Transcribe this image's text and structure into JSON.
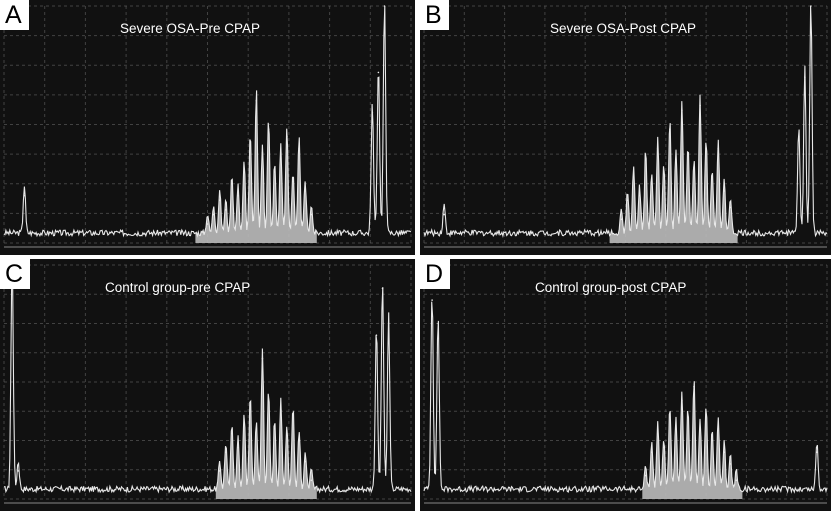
{
  "colors": {
    "background": "#111111",
    "grid": "#6a6a6a",
    "trace": "#e8e8e8",
    "fill": "#bdbdbd"
  },
  "chart_data": [
    {
      "panel": "A",
      "title": "Severe OSA-Pre CPAP",
      "type": "area",
      "grid": true,
      "peaks": [
        {
          "x": 0.05,
          "y": 0.2,
          "w": 0.004
        },
        {
          "x": 0.5,
          "y": 0.08,
          "w": 0.004
        },
        {
          "x": 0.515,
          "y": 0.12,
          "w": 0.004
        },
        {
          "x": 0.53,
          "y": 0.18,
          "w": 0.004
        },
        {
          "x": 0.545,
          "y": 0.14,
          "w": 0.004
        },
        {
          "x": 0.56,
          "y": 0.25,
          "w": 0.004
        },
        {
          "x": 0.575,
          "y": 0.2,
          "w": 0.004
        },
        {
          "x": 0.59,
          "y": 0.3,
          "w": 0.004
        },
        {
          "x": 0.605,
          "y": 0.42,
          "w": 0.004
        },
        {
          "x": 0.62,
          "y": 0.6,
          "w": 0.004
        },
        {
          "x": 0.635,
          "y": 0.38,
          "w": 0.004
        },
        {
          "x": 0.65,
          "y": 0.48,
          "w": 0.004
        },
        {
          "x": 0.665,
          "y": 0.3,
          "w": 0.004
        },
        {
          "x": 0.68,
          "y": 0.38,
          "w": 0.004
        },
        {
          "x": 0.695,
          "y": 0.45,
          "w": 0.004
        },
        {
          "x": 0.71,
          "y": 0.26,
          "w": 0.004
        },
        {
          "x": 0.725,
          "y": 0.4,
          "w": 0.004
        },
        {
          "x": 0.74,
          "y": 0.22,
          "w": 0.004
        },
        {
          "x": 0.755,
          "y": 0.12,
          "w": 0.004
        },
        {
          "x": 0.905,
          "y": 0.55,
          "w": 0.004
        },
        {
          "x": 0.92,
          "y": 0.72,
          "w": 0.004
        },
        {
          "x": 0.935,
          "y": 1.0,
          "w": 0.004
        }
      ],
      "fill_range": [
        0.47,
        0.77
      ]
    },
    {
      "panel": "B",
      "title": "Severe OSA-Post CPAP",
      "type": "area",
      "grid": true,
      "peaks": [
        {
          "x": 0.05,
          "y": 0.12,
          "w": 0.004
        },
        {
          "x": 0.49,
          "y": 0.1,
          "w": 0.004
        },
        {
          "x": 0.505,
          "y": 0.18,
          "w": 0.004
        },
        {
          "x": 0.52,
          "y": 0.28,
          "w": 0.004
        },
        {
          "x": 0.535,
          "y": 0.2,
          "w": 0.004
        },
        {
          "x": 0.55,
          "y": 0.35,
          "w": 0.004
        },
        {
          "x": 0.565,
          "y": 0.25,
          "w": 0.004
        },
        {
          "x": 0.58,
          "y": 0.4,
          "w": 0.004
        },
        {
          "x": 0.595,
          "y": 0.3,
          "w": 0.004
        },
        {
          "x": 0.61,
          "y": 0.48,
          "w": 0.004
        },
        {
          "x": 0.625,
          "y": 0.35,
          "w": 0.004
        },
        {
          "x": 0.64,
          "y": 0.56,
          "w": 0.004
        },
        {
          "x": 0.655,
          "y": 0.38,
          "w": 0.004
        },
        {
          "x": 0.67,
          "y": 0.32,
          "w": 0.004
        },
        {
          "x": 0.685,
          "y": 0.58,
          "w": 0.004
        },
        {
          "x": 0.7,
          "y": 0.4,
          "w": 0.004
        },
        {
          "x": 0.715,
          "y": 0.28,
          "w": 0.004
        },
        {
          "x": 0.73,
          "y": 0.4,
          "w": 0.004
        },
        {
          "x": 0.745,
          "y": 0.22,
          "w": 0.004
        },
        {
          "x": 0.76,
          "y": 0.15,
          "w": 0.004
        },
        {
          "x": 0.93,
          "y": 0.45,
          "w": 0.004
        },
        {
          "x": 0.945,
          "y": 0.7,
          "w": 0.004
        },
        {
          "x": 0.96,
          "y": 1.0,
          "w": 0.004
        }
      ],
      "fill_range": [
        0.46,
        0.78
      ]
    },
    {
      "panel": "C",
      "title": "Control group-pre CPAP",
      "type": "area",
      "grid": true,
      "peaks": [
        {
          "x": 0.02,
          "y": 1.0,
          "w": 0.004
        },
        {
          "x": 0.035,
          "y": 0.12,
          "w": 0.004
        },
        {
          "x": 0.53,
          "y": 0.12,
          "w": 0.004
        },
        {
          "x": 0.545,
          "y": 0.2,
          "w": 0.004
        },
        {
          "x": 0.56,
          "y": 0.28,
          "w": 0.004
        },
        {
          "x": 0.575,
          "y": 0.22,
          "w": 0.004
        },
        {
          "x": 0.59,
          "y": 0.32,
          "w": 0.004
        },
        {
          "x": 0.605,
          "y": 0.4,
          "w": 0.004
        },
        {
          "x": 0.62,
          "y": 0.3,
          "w": 0.004
        },
        {
          "x": 0.635,
          "y": 0.6,
          "w": 0.004
        },
        {
          "x": 0.65,
          "y": 0.42,
          "w": 0.004
        },
        {
          "x": 0.665,
          "y": 0.3,
          "w": 0.004
        },
        {
          "x": 0.68,
          "y": 0.38,
          "w": 0.004
        },
        {
          "x": 0.695,
          "y": 0.28,
          "w": 0.004
        },
        {
          "x": 0.71,
          "y": 0.36,
          "w": 0.004
        },
        {
          "x": 0.725,
          "y": 0.25,
          "w": 0.004
        },
        {
          "x": 0.74,
          "y": 0.16,
          "w": 0.004
        },
        {
          "x": 0.755,
          "y": 0.08,
          "w": 0.004
        },
        {
          "x": 0.915,
          "y": 0.7,
          "w": 0.004
        },
        {
          "x": 0.93,
          "y": 0.9,
          "w": 0.004
        },
        {
          "x": 0.945,
          "y": 0.75,
          "w": 0.004
        }
      ],
      "fill_range": [
        0.52,
        0.77
      ]
    },
    {
      "panel": "D",
      "title": "Control group-post CPAP",
      "type": "area",
      "grid": true,
      "peaks": [
        {
          "x": 0.02,
          "y": 0.85,
          "w": 0.004
        },
        {
          "x": 0.035,
          "y": 0.75,
          "w": 0.004
        },
        {
          "x": 0.55,
          "y": 0.1,
          "w": 0.004
        },
        {
          "x": 0.565,
          "y": 0.2,
          "w": 0.004
        },
        {
          "x": 0.58,
          "y": 0.28,
          "w": 0.004
        },
        {
          "x": 0.595,
          "y": 0.22,
          "w": 0.004
        },
        {
          "x": 0.61,
          "y": 0.35,
          "w": 0.004
        },
        {
          "x": 0.625,
          "y": 0.3,
          "w": 0.004
        },
        {
          "x": 0.64,
          "y": 0.42,
          "w": 0.004
        },
        {
          "x": 0.655,
          "y": 0.35,
          "w": 0.004
        },
        {
          "x": 0.67,
          "y": 0.48,
          "w": 0.004
        },
        {
          "x": 0.685,
          "y": 0.3,
          "w": 0.004
        },
        {
          "x": 0.7,
          "y": 0.36,
          "w": 0.004
        },
        {
          "x": 0.715,
          "y": 0.25,
          "w": 0.004
        },
        {
          "x": 0.73,
          "y": 0.3,
          "w": 0.004
        },
        {
          "x": 0.745,
          "y": 0.2,
          "w": 0.004
        },
        {
          "x": 0.76,
          "y": 0.15,
          "w": 0.004
        },
        {
          "x": 0.775,
          "y": 0.08,
          "w": 0.004
        },
        {
          "x": 0.975,
          "y": 0.2,
          "w": 0.004
        }
      ],
      "fill_range": [
        0.54,
        0.79
      ]
    }
  ]
}
